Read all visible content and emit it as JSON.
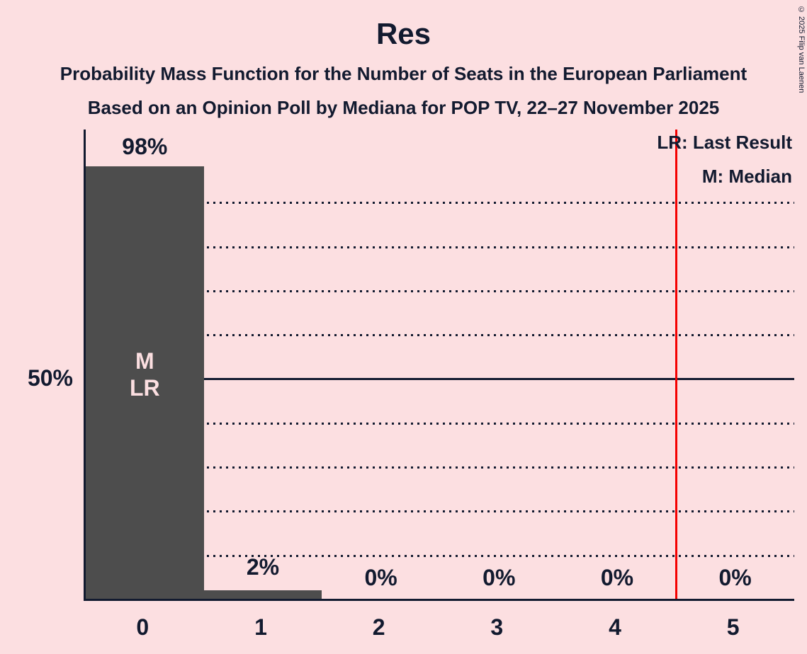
{
  "header": {
    "title": "Res",
    "subtitle1": "Probability Mass Function for the Number of Seats in the European Parliament",
    "subtitle2": "Based on an Opinion Poll by Mediana for POP TV, 22–27 November 2025"
  },
  "copyright": "© 2025 Filip van Laenen",
  "legend": {
    "lr_label": "LR: Last Result",
    "m_label": "M: Median"
  },
  "y_axis": {
    "tick_label_50": "50%"
  },
  "chart_data": {
    "type": "bar",
    "title": "Res",
    "categories": [
      "0",
      "1",
      "2",
      "3",
      "4",
      "5"
    ],
    "values": [
      98,
      2,
      0,
      0,
      0,
      0
    ],
    "value_labels": [
      "98%",
      "2%",
      "0%",
      "0%",
      "0%",
      "0%"
    ],
    "ylim": [
      0,
      100
    ],
    "y_tick_labels": [
      "50%"
    ],
    "gridlines_dotted_pct": [
      10,
      20,
      30,
      40,
      60,
      70,
      80,
      90
    ],
    "gridline_solid_pct": 50,
    "legend_entries": [
      "LR: Last Result",
      "M: Median"
    ],
    "bar_annotation": {
      "bar_index": 0,
      "line1": "M",
      "line2": "LR"
    },
    "vertical_reference_line_x": 4.5,
    "grid": "horizontal-dotted",
    "legend_position": "top-right",
    "colors": {
      "background": "#FCDFE1",
      "bar": "#4D4D4D",
      "bar_label": "#FCDFE1",
      "text": "#121A2F",
      "red_line": "#F40000"
    }
  }
}
